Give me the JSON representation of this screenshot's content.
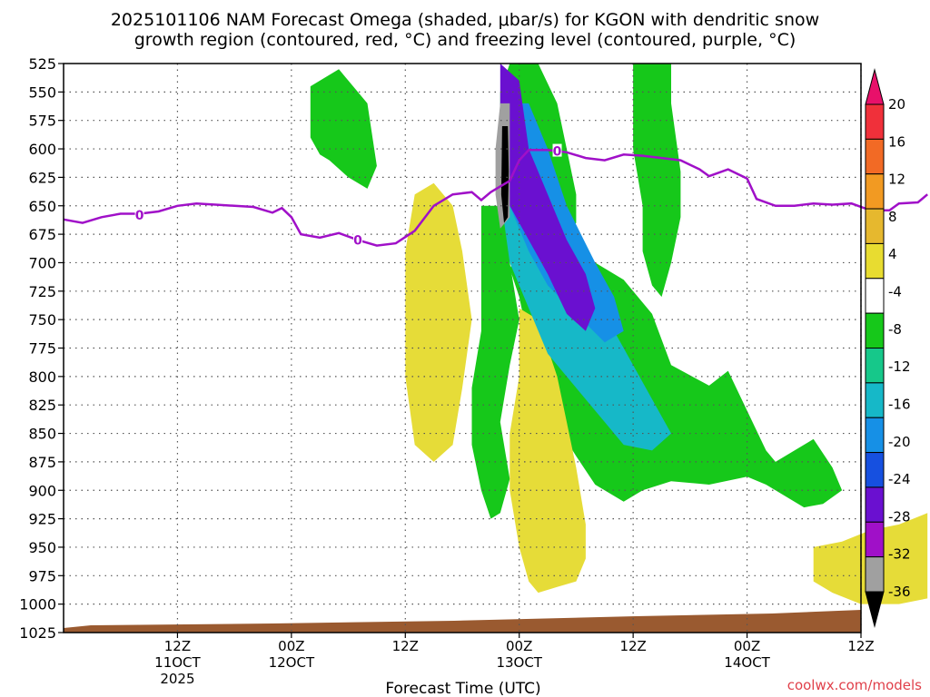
{
  "chart_data": {
    "type": "contour",
    "title_line1": "2025101106 NAM Forecast Omega (shaded, μbar/s) for KGON with dendritic snow",
    "title_line2": "growth region (contoured, red, °C) and freezing level (contoured, purple, °C)",
    "xlabel": "Forecast Time (UTC)",
    "ylabel": "",
    "credit": "coolwx.com/models",
    "x_range_hours": [
      -6,
      78
    ],
    "y_range_hpa": [
      525,
      1025
    ],
    "y_ticks": [
      "525",
      "550",
      "575",
      "600",
      "625",
      "650",
      "675",
      "700",
      "725",
      "750",
      "775",
      "800",
      "825",
      "850",
      "875",
      "900",
      "925",
      "950",
      "975",
      "1000",
      "1025"
    ],
    "x_ticks": [
      {
        "hour": 6,
        "line1": "12Z",
        "line2": "11OCT",
        "line3": "2025"
      },
      {
        "hour": 18,
        "line1": "00Z",
        "line2": "12OCT",
        "line3": ""
      },
      {
        "hour": 30,
        "line1": "12Z",
        "line2": "",
        "line3": ""
      },
      {
        "hour": 42,
        "line1": "00Z",
        "line2": "13OCT",
        "line3": ""
      },
      {
        "hour": 54,
        "line1": "12Z",
        "line2": "",
        "line3": ""
      },
      {
        "hour": 66,
        "line1": "00Z",
        "line2": "14OCT",
        "line3": ""
      },
      {
        "hour": 78,
        "line1": "12Z",
        "line2": "",
        "line3": ""
      }
    ],
    "colorbar": {
      "labels": [
        "20",
        "16",
        "12",
        "8",
        "4",
        "-4",
        "-8",
        "-12",
        "-16",
        "-20",
        "-24",
        "-28",
        "-32",
        "-36"
      ],
      "colors": [
        "#e8106a",
        "#f0303a",
        "#f26a25",
        "#f29a22",
        "#e6b82e",
        "#e8dc30",
        "#ffffff",
        "#16c81a",
        "#16c88a",
        "#16b8c8",
        "#1690e6",
        "#1650e0",
        "#6a10d0",
        "#a010c8",
        "#a0a0a0",
        "#000000"
      ]
    },
    "freezing_level": {
      "label": "0",
      "color": "#a010c8",
      "points": [
        [
          -6,
          662
        ],
        [
          -4,
          665
        ],
        [
          -2,
          660
        ],
        [
          0,
          657
        ],
        [
          2,
          657
        ],
        [
          4,
          655
        ],
        [
          6,
          650
        ],
        [
          8,
          648
        ],
        [
          10,
          649
        ],
        [
          12,
          650
        ],
        [
          14,
          651
        ],
        [
          16,
          656
        ],
        [
          17,
          652
        ],
        [
          18,
          660
        ],
        [
          19,
          675
        ],
        [
          21,
          678
        ],
        [
          23,
          674
        ],
        [
          25,
          680
        ],
        [
          27,
          685
        ],
        [
          29,
          683
        ],
        [
          31,
          672
        ],
        [
          33,
          650
        ],
        [
          35,
          640
        ],
        [
          37,
          638
        ],
        [
          38,
          645
        ],
        [
          39,
          638
        ],
        [
          40,
          633
        ],
        [
          41,
          628
        ],
        [
          42,
          610
        ],
        [
          43,
          601
        ],
        [
          45,
          601
        ],
        [
          47,
          603
        ],
        [
          49,
          608
        ],
        [
          51,
          610
        ],
        [
          53,
          605
        ],
        [
          55,
          606
        ],
        [
          57,
          608
        ],
        [
          59,
          610
        ],
        [
          61,
          618
        ],
        [
          62,
          624
        ],
        [
          64,
          618
        ],
        [
          66,
          626
        ],
        [
          67,
          644
        ],
        [
          69,
          650
        ],
        [
          71,
          650
        ],
        [
          73,
          648
        ],
        [
          75,
          649
        ],
        [
          77,
          648
        ],
        [
          79,
          654
        ],
        [
          81,
          654
        ],
        [
          82,
          648
        ],
        [
          84,
          647
        ],
        [
          85,
          640
        ]
      ]
    },
    "omega_regions": [
      {
        "name": "green-2",
        "color": "#16c81a",
        "points": [
          [
            20,
            545
          ],
          [
            23,
            530
          ],
          [
            26,
            560
          ],
          [
            27,
            615
          ],
          [
            26,
            635
          ],
          [
            24,
            625
          ],
          [
            22,
            610
          ],
          [
            21,
            605
          ],
          [
            20,
            590
          ]
        ]
      },
      {
        "name": "green-3",
        "color": "#16c81a",
        "points": [
          [
            41,
            525
          ],
          [
            44,
            525
          ],
          [
            46,
            560
          ],
          [
            47,
            600
          ],
          [
            48,
            640
          ],
          [
            48,
            665
          ],
          [
            46,
            685
          ],
          [
            44,
            690
          ],
          [
            42,
            690
          ],
          [
            40,
            688
          ],
          [
            40,
            650
          ],
          [
            41,
            620
          ],
          [
            40,
            580
          ],
          [
            40,
            550
          ]
        ]
      },
      {
        "name": "green-4",
        "color": "#16c81a",
        "points": [
          [
            42,
            690
          ],
          [
            46,
            690
          ],
          [
            50,
            700
          ],
          [
            53,
            715
          ],
          [
            56,
            745
          ],
          [
            58,
            790
          ],
          [
            62,
            808
          ],
          [
            64,
            795
          ],
          [
            66,
            830
          ],
          [
            68,
            865
          ],
          [
            69,
            875
          ],
          [
            73,
            855
          ],
          [
            75,
            880
          ],
          [
            76,
            900
          ],
          [
            74,
            912
          ],
          [
            72,
            915
          ],
          [
            68,
            895
          ],
          [
            66,
            888
          ],
          [
            62,
            895
          ],
          [
            58,
            892
          ],
          [
            55,
            900
          ],
          [
            53,
            910
          ],
          [
            50,
            895
          ],
          [
            48,
            870
          ],
          [
            45,
            830
          ],
          [
            43,
            770
          ],
          [
            42,
            730
          ],
          [
            41,
            705
          ]
        ]
      },
      {
        "name": "green-5",
        "color": "#16c81a",
        "points": [
          [
            38,
            650
          ],
          [
            41,
            650
          ],
          [
            41,
            700
          ],
          [
            42,
            750
          ],
          [
            41,
            790
          ],
          [
            40,
            840
          ],
          [
            41,
            890
          ],
          [
            40,
            920
          ],
          [
            39,
            925
          ],
          [
            38,
            900
          ],
          [
            37,
            860
          ],
          [
            37,
            810
          ],
          [
            38,
            760
          ],
          [
            38,
            700
          ]
        ]
      },
      {
        "name": "green-6",
        "color": "#16c81a",
        "points": [
          [
            54,
            525
          ],
          [
            58,
            525
          ],
          [
            58,
            560
          ],
          [
            59,
            620
          ],
          [
            59,
            660
          ],
          [
            58,
            700
          ],
          [
            57,
            730
          ],
          [
            56,
            720
          ],
          [
            55,
            690
          ],
          [
            55,
            650
          ],
          [
            54,
            600
          ],
          [
            54,
            560
          ]
        ]
      },
      {
        "name": "yellow-1",
        "color": "#e6dc38",
        "points": [
          [
            31,
            640
          ],
          [
            33,
            630
          ],
          [
            35,
            650
          ],
          [
            36,
            690
          ],
          [
            37,
            750
          ],
          [
            36,
            810
          ],
          [
            35,
            860
          ],
          [
            33,
            875
          ],
          [
            31,
            860
          ],
          [
            30,
            800
          ],
          [
            30,
            740
          ],
          [
            30,
            690
          ]
        ]
      },
      {
        "name": "yellow-2",
        "color": "#e6dc38",
        "points": [
          [
            42,
            740
          ],
          [
            44,
            750
          ],
          [
            46,
            800
          ],
          [
            47,
            840
          ],
          [
            48,
            880
          ],
          [
            49,
            930
          ],
          [
            49,
            960
          ],
          [
            48,
            980
          ],
          [
            46,
            985
          ],
          [
            44,
            990
          ],
          [
            43,
            980
          ],
          [
            42,
            950
          ],
          [
            41,
            900
          ],
          [
            41,
            850
          ],
          [
            42,
            800
          ]
        ]
      },
      {
        "name": "yellow-3",
        "color": "#e6dc38",
        "points": [
          [
            73,
            950
          ],
          [
            76,
            945
          ],
          [
            79,
            935
          ],
          [
            82,
            930
          ],
          [
            85,
            920
          ],
          [
            85,
            995
          ],
          [
            82,
            1000
          ],
          [
            78,
            1000
          ],
          [
            75,
            990
          ],
          [
            73,
            980
          ]
        ]
      },
      {
        "name": "cyan-1",
        "color": "#16b8c8",
        "points": [
          [
            40,
            640
          ],
          [
            44,
            640
          ],
          [
            47,
            680
          ],
          [
            49,
            720
          ],
          [
            52,
            760
          ],
          [
            54,
            790
          ],
          [
            56,
            820
          ],
          [
            58,
            850
          ],
          [
            56,
            865
          ],
          [
            53,
            860
          ],
          [
            51,
            840
          ],
          [
            48,
            810
          ],
          [
            45,
            780
          ],
          [
            43,
            740
          ],
          [
            41,
            700
          ]
        ]
      },
      {
        "name": "blue-1",
        "color": "#1690e6",
        "points": [
          [
            40,
            560
          ],
          [
            43,
            560
          ],
          [
            45,
            600
          ],
          [
            47,
            650
          ],
          [
            50,
            700
          ],
          [
            52,
            730
          ],
          [
            53,
            760
          ],
          [
            51,
            770
          ],
          [
            48,
            745
          ],
          [
            45,
            720
          ],
          [
            43,
            690
          ],
          [
            41,
            650
          ]
        ]
      },
      {
        "name": "purple-1",
        "color": "#6a10d0",
        "points": [
          [
            40,
            525
          ],
          [
            42,
            540
          ],
          [
            43,
            600
          ],
          [
            45,
            640
          ],
          [
            47,
            680
          ],
          [
            49,
            710
          ],
          [
            50,
            740
          ],
          [
            49,
            760
          ],
          [
            47,
            745
          ],
          [
            45,
            710
          ],
          [
            43,
            680
          ],
          [
            41,
            650
          ],
          [
            40,
            600
          ]
        ]
      },
      {
        "name": "gray-1",
        "color": "#a0a0a0",
        "points": [
          [
            40,
            560
          ],
          [
            41,
            560
          ],
          [
            41,
            600
          ],
          [
            41,
            640
          ],
          [
            41,
            660
          ],
          [
            40,
            670
          ],
          [
            39.5,
            640
          ],
          [
            39.5,
            600
          ]
        ]
      },
      {
        "name": "black-1",
        "color": "#000000",
        "points": [
          [
            40.2,
            580
          ],
          [
            40.8,
            580
          ],
          [
            40.9,
            620
          ],
          [
            40.8,
            660
          ],
          [
            40.4,
            665
          ],
          [
            40.1,
            640
          ]
        ]
      }
    ]
  }
}
